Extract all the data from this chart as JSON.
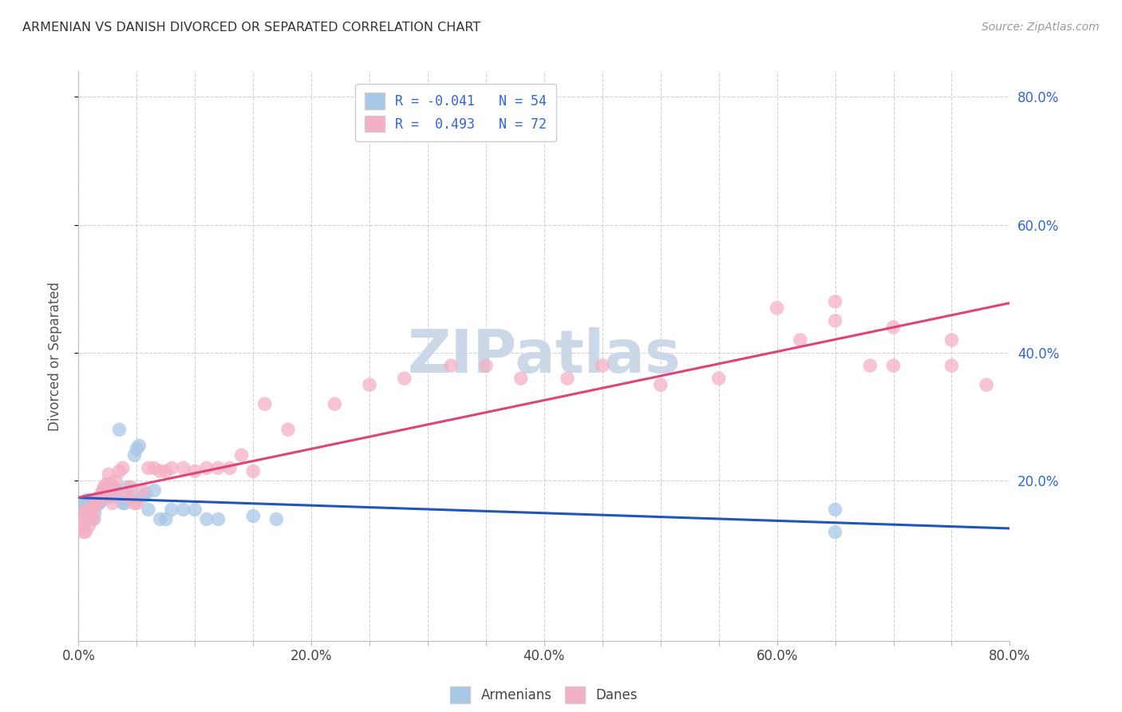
{
  "title": "ARMENIAN VS DANISH DIVORCED OR SEPARATED CORRELATION CHART",
  "source": "Source: ZipAtlas.com",
  "ylabel": "Divorced or Separated",
  "xlim": [
    0.0,
    0.8
  ],
  "ylim": [
    -0.05,
    0.84
  ],
  "xtick_labels": [
    "0.0%",
    "",
    "",
    "",
    "20.0%",
    "",
    "",
    "",
    "40.0%",
    "",
    "",
    "",
    "60.0%",
    "",
    "",
    "",
    "80.0%"
  ],
  "xtick_vals": [
    0.0,
    0.05,
    0.1,
    0.15,
    0.2,
    0.25,
    0.3,
    0.35,
    0.4,
    0.45,
    0.5,
    0.55,
    0.6,
    0.65,
    0.7,
    0.75,
    0.8
  ],
  "ytick_labels": [
    "20.0%",
    "40.0%",
    "60.0%",
    "80.0%"
  ],
  "ytick_vals": [
    0.2,
    0.4,
    0.6,
    0.8
  ],
  "legend_label1": "R = -0.041   N = 54",
  "legend_label2": "R =  0.493   N = 72",
  "armenians_color": "#a8c8e8",
  "danes_color": "#f4b0c4",
  "armenians_line_color": "#2255bb",
  "danes_line_color": "#dd4477",
  "legend_color1": "#a8c8e8",
  "legend_color2": "#f4b0c4",
  "text_blue": "#3366cc",
  "watermark_color": "#ccd8e8",
  "armenians_x": [
    0.002,
    0.003,
    0.004,
    0.005,
    0.006,
    0.007,
    0.007,
    0.008,
    0.009,
    0.01,
    0.01,
    0.011,
    0.012,
    0.013,
    0.014,
    0.015,
    0.016,
    0.017,
    0.018,
    0.019,
    0.02,
    0.021,
    0.022,
    0.023,
    0.025,
    0.026,
    0.027,
    0.028,
    0.03,
    0.032,
    0.033,
    0.035,
    0.038,
    0.04,
    0.042,
    0.045,
    0.048,
    0.05,
    0.052,
    0.055,
    0.058,
    0.06,
    0.065,
    0.07,
    0.075,
    0.08,
    0.09,
    0.1,
    0.11,
    0.12,
    0.15,
    0.17,
    0.65,
    0.65
  ],
  "armenians_y": [
    0.155,
    0.16,
    0.16,
    0.155,
    0.16,
    0.155,
    0.17,
    0.16,
    0.155,
    0.14,
    0.17,
    0.155,
    0.155,
    0.14,
    0.15,
    0.165,
    0.17,
    0.165,
    0.165,
    0.17,
    0.175,
    0.185,
    0.175,
    0.19,
    0.18,
    0.175,
    0.175,
    0.19,
    0.19,
    0.185,
    0.175,
    0.28,
    0.165,
    0.165,
    0.19,
    0.175,
    0.24,
    0.25,
    0.255,
    0.175,
    0.18,
    0.155,
    0.185,
    0.14,
    0.14,
    0.155,
    0.155,
    0.155,
    0.14,
    0.14,
    0.145,
    0.14,
    0.155,
    0.12
  ],
  "danes_x": [
    0.002,
    0.003,
    0.004,
    0.005,
    0.006,
    0.007,
    0.008,
    0.009,
    0.01,
    0.011,
    0.012,
    0.013,
    0.014,
    0.015,
    0.016,
    0.017,
    0.018,
    0.019,
    0.02,
    0.021,
    0.022,
    0.023,
    0.024,
    0.025,
    0.026,
    0.027,
    0.028,
    0.029,
    0.03,
    0.032,
    0.035,
    0.038,
    0.04,
    0.042,
    0.045,
    0.048,
    0.05,
    0.055,
    0.06,
    0.065,
    0.07,
    0.075,
    0.08,
    0.09,
    0.1,
    0.11,
    0.12,
    0.13,
    0.14,
    0.15,
    0.16,
    0.18,
    0.22,
    0.25,
    0.28,
    0.32,
    0.35,
    0.38,
    0.42,
    0.45,
    0.5,
    0.55,
    0.6,
    0.62,
    0.65,
    0.68,
    0.7,
    0.75,
    0.78,
    0.65,
    0.7,
    0.75
  ],
  "danes_y": [
    0.15,
    0.13,
    0.12,
    0.14,
    0.12,
    0.155,
    0.14,
    0.13,
    0.145,
    0.155,
    0.155,
    0.14,
    0.16,
    0.165,
    0.17,
    0.17,
    0.175,
    0.175,
    0.175,
    0.185,
    0.19,
    0.19,
    0.195,
    0.18,
    0.21,
    0.185,
    0.195,
    0.165,
    0.185,
    0.2,
    0.215,
    0.22,
    0.18,
    0.175,
    0.19,
    0.165,
    0.165,
    0.185,
    0.22,
    0.22,
    0.215,
    0.215,
    0.22,
    0.22,
    0.215,
    0.22,
    0.22,
    0.22,
    0.24,
    0.215,
    0.32,
    0.28,
    0.32,
    0.35,
    0.36,
    0.38,
    0.38,
    0.36,
    0.36,
    0.38,
    0.35,
    0.36,
    0.47,
    0.42,
    0.48,
    0.38,
    0.38,
    0.38,
    0.35,
    0.45,
    0.44,
    0.42
  ]
}
